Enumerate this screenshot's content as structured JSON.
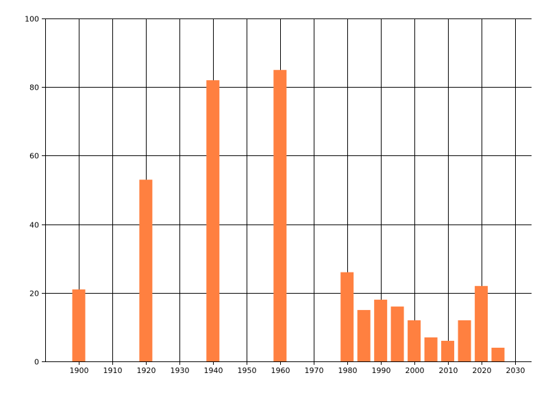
{
  "chart_data": {
    "type": "bar",
    "title": "",
    "xlabel": "",
    "ylabel": "",
    "x": [
      1900,
      1920,
      1940,
      1960,
      1980,
      1985,
      1990,
      1995,
      2000,
      2005,
      2010,
      2015,
      2020,
      2025
    ],
    "values": [
      21,
      53,
      82,
      85,
      26,
      15,
      18,
      16,
      12,
      7,
      6,
      12,
      22,
      4
    ],
    "xlim": [
      1890,
      2035
    ],
    "ylim": [
      0,
      100
    ],
    "x_ticks": [
      "1900",
      "1910",
      "1920",
      "1930",
      "1940",
      "1950",
      "1960",
      "1970",
      "1980",
      "1990",
      "2000",
      "2010",
      "2020",
      "2030"
    ],
    "y_ticks": [
      "0",
      "20",
      "40",
      "60",
      "80",
      "100"
    ],
    "grid": true,
    "bar_color": "#ff8040"
  }
}
